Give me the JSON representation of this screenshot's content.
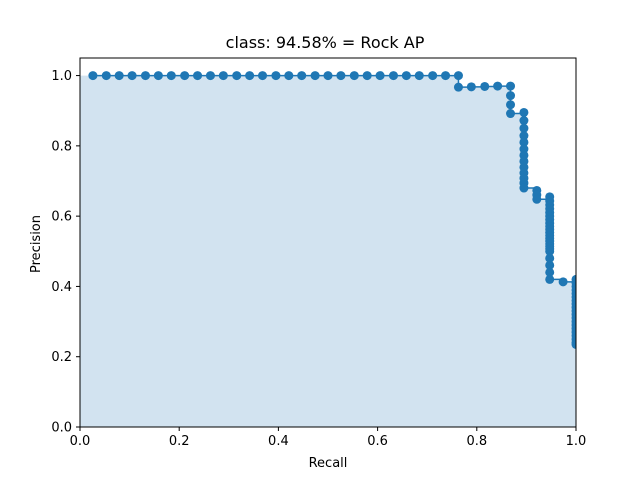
{
  "chart_data": {
    "type": "area",
    "title": "class: 94.58% = Rock AP",
    "xlabel": "Recall",
    "ylabel": "Precision",
    "xlim": [
      0.0,
      1.0
    ],
    "ylim": [
      0.0,
      1.05
    ],
    "xticks": [
      "0.0",
      "0.2",
      "0.4",
      "0.6",
      "0.8",
      "1.0"
    ],
    "yticks": [
      "0.0",
      "0.2",
      "0.4",
      "0.6",
      "0.8",
      "1.0"
    ],
    "grid": false,
    "colors": {
      "line": "#1f77b4",
      "fill": "#d2e3f0"
    },
    "series": [
      {
        "x": [
          0.026,
          0.053,
          0.079,
          0.105,
          0.132,
          0.158,
          0.184,
          0.211,
          0.237,
          0.263,
          0.289,
          0.316,
          0.342,
          0.368,
          0.395,
          0.421,
          0.447,
          0.474,
          0.5,
          0.526,
          0.553,
          0.579,
          0.605,
          0.632,
          0.658,
          0.684,
          0.711,
          0.737,
          0.763,
          0.763,
          0.789,
          0.816,
          0.842,
          0.868,
          0.868,
          0.868,
          0.868,
          0.895,
          0.895,
          0.895,
          0.895,
          0.895,
          0.895,
          0.895,
          0.895,
          0.895,
          0.895,
          0.895,
          0.895,
          0.895,
          0.921,
          0.921,
          0.921,
          0.947,
          0.947,
          0.947,
          0.947,
          0.947,
          0.947,
          0.947,
          0.947,
          0.947,
          0.947,
          0.947,
          0.947,
          0.947,
          0.947,
          0.947,
          0.947,
          0.947,
          0.947,
          0.947,
          0.947,
          0.947,
          0.947,
          0.974,
          1.0,
          1.0,
          1.0,
          1.0,
          1.0,
          1.0,
          1.0,
          1.0,
          1.0,
          1.0,
          1.0,
          1.0,
          1.0,
          1.0,
          1.0,
          1.0,
          1.0,
          1.0,
          1.0,
          1.0
        ],
        "y": [
          1.0,
          1.0,
          1.0,
          1.0,
          1.0,
          1.0,
          1.0,
          1.0,
          1.0,
          1.0,
          1.0,
          1.0,
          1.0,
          1.0,
          1.0,
          1.0,
          1.0,
          1.0,
          1.0,
          1.0,
          1.0,
          1.0,
          1.0,
          1.0,
          1.0,
          1.0,
          1.0,
          1.0,
          1.0,
          0.967,
          0.968,
          0.969,
          0.97,
          0.97,
          0.943,
          0.917,
          0.892,
          0.895,
          0.872,
          0.85,
          0.829,
          0.81,
          0.791,
          0.773,
          0.756,
          0.739,
          0.723,
          0.708,
          0.694,
          0.68,
          0.673,
          0.66,
          0.648,
          0.655,
          0.643,
          0.632,
          0.621,
          0.61,
          0.6,
          0.59,
          0.58,
          0.571,
          0.562,
          0.553,
          0.545,
          0.537,
          0.529,
          0.521,
          0.514,
          0.507,
          0.5,
          0.48,
          0.46,
          0.44,
          0.42,
          0.413,
          0.42,
          0.41,
          0.4,
          0.39,
          0.38,
          0.37,
          0.36,
          0.35,
          0.34,
          0.33,
          0.32,
          0.31,
          0.3,
          0.29,
          0.28,
          0.27,
          0.26,
          0.25,
          0.24,
          0.235
        ]
      }
    ]
  }
}
